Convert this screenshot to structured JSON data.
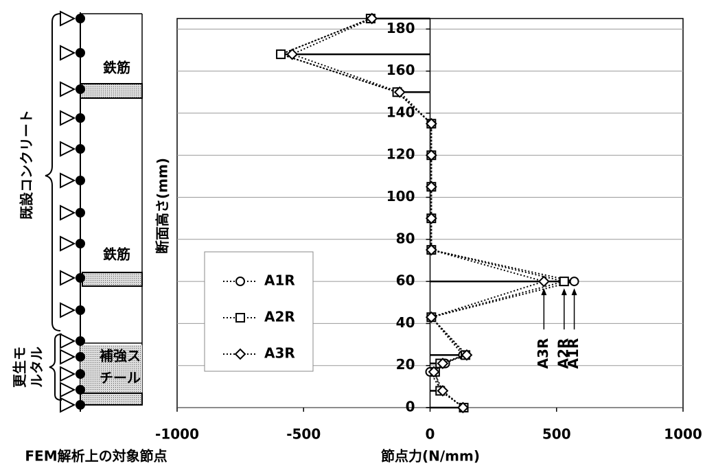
{
  "chart_data": {
    "type": "line",
    "x_label": "節点力(N/mm)",
    "y_label": "断面高さ(mm)",
    "xlim": [
      -1000,
      1000
    ],
    "xticks": [
      -1000,
      -500,
      0,
      500,
      1000
    ],
    "ylim": [
      0,
      185
    ],
    "yticks": [
      0,
      20,
      40,
      60,
      80,
      100,
      120,
      140,
      160,
      180
    ],
    "grid": true,
    "legend": "left",
    "series": [
      {
        "name": "A1R",
        "color": "#000000",
        "marker": "circle",
        "x": [
          133,
          45,
          0,
          60,
          130,
          5,
          570,
          5,
          5,
          5,
          5,
          5,
          -130,
          -590,
          -235
        ],
        "values": [
          0,
          8,
          17,
          21,
          25,
          43,
          60,
          75,
          90,
          105,
          120,
          135,
          150,
          168,
          185
        ]
      },
      {
        "name": "A2R",
        "color": "#000000",
        "marker": "square",
        "x": [
          133,
          40,
          20,
          40,
          140,
          5,
          530,
          5,
          5,
          5,
          5,
          5,
          -130,
          -590,
          -235
        ],
        "values": [
          0,
          8,
          17,
          21,
          25,
          43,
          60,
          75,
          90,
          105,
          120,
          135,
          150,
          168,
          185
        ]
      },
      {
        "name": "A3R",
        "color": "#000000",
        "marker": "diamond",
        "x": [
          130,
          50,
          15,
          50,
          145,
          5,
          450,
          5,
          5,
          5,
          5,
          5,
          -120,
          -545,
          -230
        ],
        "values": [
          0,
          8,
          17,
          21,
          25,
          43,
          60,
          75,
          90,
          105,
          120,
          135,
          150,
          168,
          185
        ]
      }
    ]
  },
  "schematic": {
    "existing": "既設コンクリート",
    "rebar_top": "鉄筋",
    "rebar_mid": "鉄筋",
    "mortar_1": "更生モ",
    "mortar_2": "ルタル",
    "steel_1": "補強ス",
    "steel_2": "チール",
    "caption": "FEM解析上の対象節点"
  }
}
